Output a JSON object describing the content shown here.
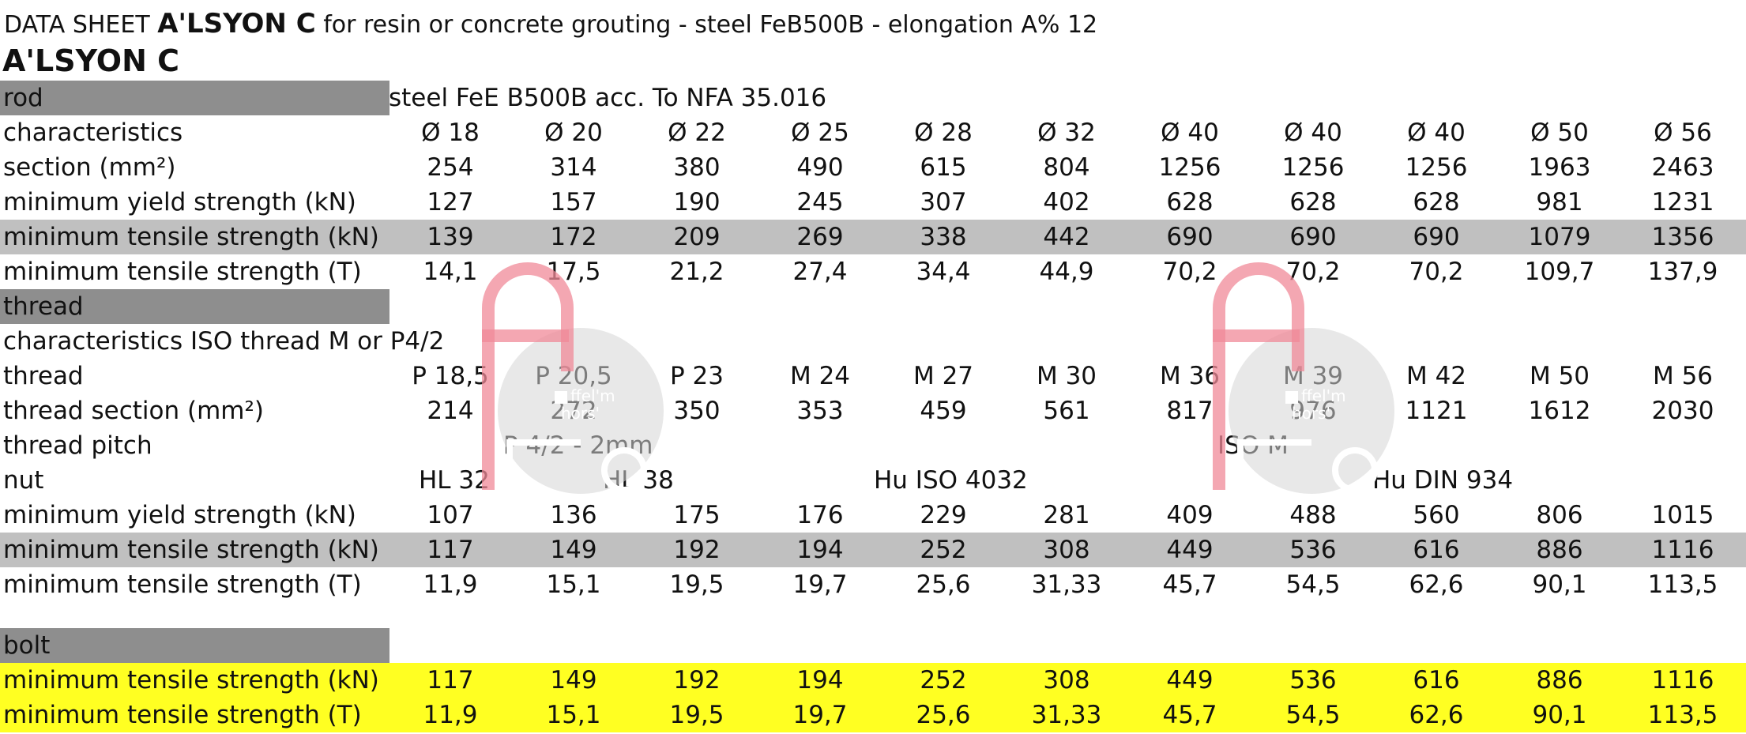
{
  "header": {
    "prefix": "DATA SHEET",
    "brand": "A'LSYON C",
    "suffix": "for resin or concrete grouting - steel FeB500B - elongation A% 12",
    "subtitle": "A'LSYON C"
  },
  "watermark": {
    "line1": "ffel'm",
    "line2": "hors'"
  },
  "rod": {
    "header": "rod",
    "spec": "steel FeE B500B acc. To NFA 35.016",
    "rows": [
      {
        "label": "characteristics",
        "values": [
          "Ø 18",
          "Ø 20",
          "Ø 22",
          "Ø 25",
          "Ø 28",
          "Ø 32",
          "Ø 40",
          "Ø 40",
          "Ø 40",
          "Ø 50",
          "Ø 56"
        ]
      },
      {
        "label": "section (mm²)",
        "values": [
          "254",
          "314",
          "380",
          "490",
          "615",
          "804",
          "1256",
          "1256",
          "1256",
          "1963",
          "2463"
        ]
      },
      {
        "label": "minimum yield strength (kN)",
        "values": [
          "127",
          "157",
          "190",
          "245",
          "307",
          "402",
          "628",
          "628",
          "628",
          "981",
          "1231"
        ]
      },
      {
        "label": "minimum tensile strength (kN)",
        "values": [
          "139",
          "172",
          "209",
          "269",
          "338",
          "442",
          "690",
          "690",
          "690",
          "1079",
          "1356"
        ]
      },
      {
        "label": "minimum tensile strength (T)",
        "values": [
          "14,1",
          "17,5",
          "21,2",
          "27,4",
          "34,4",
          "44,9",
          "70,2",
          "70,2",
          "70,2",
          "109,7",
          "137,9"
        ]
      }
    ]
  },
  "thread": {
    "header": "thread",
    "characteristics": "characteristics ISO thread M or P4/2",
    "rows": [
      {
        "label": "thread",
        "values": [
          "P 18,5",
          "P 20,5",
          "P 23",
          "M 24",
          "M 27",
          "M 30",
          "M 36",
          "M 39",
          "M 42",
          "M 50",
          "M 56"
        ]
      },
      {
        "label": "thread section (mm²)",
        "values": [
          "214",
          "272",
          "350",
          "353",
          "459",
          "561",
          "817",
          "976",
          "1121",
          "1612",
          "2030"
        ]
      }
    ],
    "pitch_label": "thread pitch",
    "pitch_notes": [
      "P 4/2 - 2mm",
      "ISO M"
    ],
    "nut_label": "nut",
    "nut_notes": [
      "HL 32",
      "HL 38",
      "Hu ISO 4032",
      "Hu DIN 934"
    ],
    "strength_rows": [
      {
        "label": "minimum yield strength (kN)",
        "values": [
          "107",
          "136",
          "175",
          "176",
          "229",
          "281",
          "409",
          "488",
          "560",
          "806",
          "1015"
        ]
      },
      {
        "label": "minimum tensile strength (kN)",
        "values": [
          "117",
          "149",
          "192",
          "194",
          "252",
          "308",
          "449",
          "536",
          "616",
          "886",
          "1116"
        ]
      },
      {
        "label": "minimum tensile strength (T)",
        "values": [
          "11,9",
          "15,1",
          "19,5",
          "19,7",
          "25,6",
          "31,33",
          "45,7",
          "54,5",
          "62,6",
          "90,1",
          "113,5"
        ]
      }
    ]
  },
  "bolt": {
    "header": "bolt",
    "rows": [
      {
        "label": "minimum tensile strength (kN)",
        "values": [
          "117",
          "149",
          "192",
          "194",
          "252",
          "308",
          "449",
          "536",
          "616",
          "886",
          "1116"
        ]
      },
      {
        "label": "minimum tensile strength (T)",
        "values": [
          "11,9",
          "15,1",
          "19,5",
          "19,7",
          "25,6",
          "31,33",
          "45,7",
          "54,5",
          "62,6",
          "90,1",
          "113,5"
        ]
      }
    ]
  }
}
